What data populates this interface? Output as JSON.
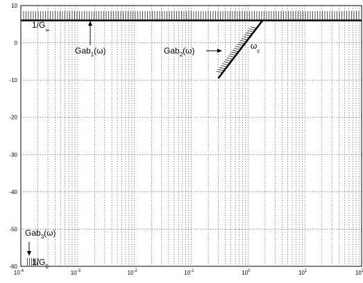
{
  "chart_data": {
    "type": "line",
    "x_scale": "log",
    "xlim": [
      0.0001,
      100
    ],
    "ylim": [
      -60,
      10
    ],
    "grid": true,
    "x_ticks": [
      {
        "value": 0.0001,
        "exp": "-4"
      },
      {
        "value": 0.001,
        "exp": "-3"
      },
      {
        "value": 0.01,
        "exp": "-2"
      },
      {
        "value": 0.1,
        "exp": "-1"
      },
      {
        "value": 1,
        "exp": "0"
      },
      {
        "value": 10,
        "exp": "1"
      },
      {
        "value": 100,
        "exp": "2"
      }
    ],
    "x_tick_base": "10",
    "y_ticks": [
      10,
      0,
      -10,
      -20,
      -30,
      -40,
      -50,
      -60
    ],
    "series": [
      {
        "values": [
          {
            "x": 0.0001,
            "y": 6
          },
          {
            "x": 100,
            "y": 6
          }
        ]
      },
      {
        "values": [
          {
            "x": 0.3,
            "y": -9.5
          },
          {
            "x": 1.8,
            "y": 6
          }
        ]
      }
    ],
    "annotations": {
      "g_inf": {
        "main": "1/G",
        "sub": "∞"
      },
      "gab1": {
        "main": "Gab",
        "sub": "1",
        "tail": "(ω)"
      },
      "gab2": {
        "main": "Gab",
        "sub": "2",
        "tail": "(ω)"
      },
      "omega_c": {
        "main": "ω",
        "sub": "c"
      },
      "gab3": {
        "main": "Gab",
        "sub": "3",
        "tail": "(ω)"
      },
      "g0": {
        "main": "1/G",
        "sub": "0"
      }
    }
  }
}
